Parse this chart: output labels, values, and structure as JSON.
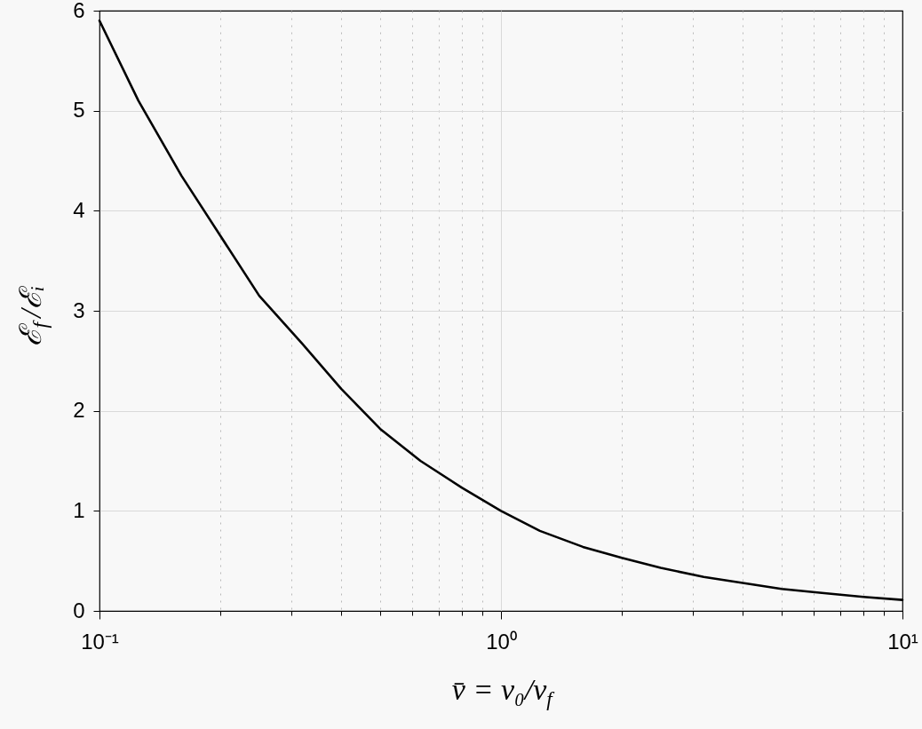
{
  "chart_data": {
    "type": "line",
    "xlabel": "v̄ = v₀/v$_{f}$",
    "ylabel": "ℰ$_{f}$/ℰᵢ",
    "x": [
      0.1,
      0.125,
      0.16,
      0.2,
      0.25,
      0.32,
      0.4,
      0.5,
      0.63,
      0.8,
      1,
      1.25,
      1.6,
      2,
      2.5,
      3.2,
      4,
      5,
      6.3,
      8,
      10
    ],
    "series": [
      {
        "color": "#000000",
        "values": [
          5.9,
          5.1,
          4.35,
          3.75,
          3.15,
          2.67,
          2.22,
          1.82,
          1.5,
          1.23,
          1.0,
          0.8,
          0.64,
          0.53,
          0.43,
          0.34,
          0.28,
          0.22,
          0.18,
          0.14,
          0.11
        ]
      }
    ],
    "log": "x",
    "grid": true,
    "xlim": [
      0.1,
      10
    ],
    "ylim": [
      0,
      6
    ],
    "xticks": [
      {
        "value": 0.1,
        "label": "10⁻¹"
      },
      {
        "value": 0.2,
        "label": null
      },
      {
        "value": 0.3,
        "label": null
      },
      {
        "value": 0.4,
        "label": null
      },
      {
        "value": 0.5,
        "label": null
      },
      {
        "value": 0.6,
        "label": null
      },
      {
        "value": 0.7,
        "label": null
      },
      {
        "value": 0.8,
        "label": null
      },
      {
        "value": 0.9,
        "label": null
      },
      {
        "value": 1,
        "label": "10⁰"
      },
      {
        "value": 2,
        "label": null
      },
      {
        "value": 3,
        "label": null
      },
      {
        "value": 4,
        "label": null
      },
      {
        "value": 5,
        "label": null
      },
      {
        "value": 6,
        "label": null
      },
      {
        "value": 7,
        "label": null
      },
      {
        "value": 8,
        "label": null
      },
      {
        "value": 9,
        "label": null
      },
      {
        "value": 10,
        "label": "10¹"
      }
    ],
    "yticks": [
      0,
      1,
      2,
      3,
      4,
      5,
      6
    ]
  }
}
